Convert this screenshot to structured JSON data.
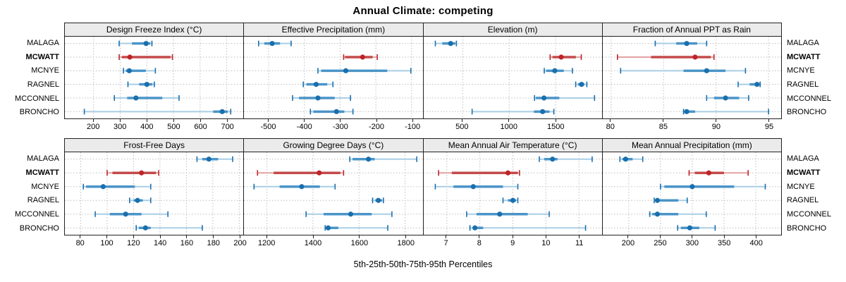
{
  "title": "Annual Climate: competing",
  "caption": "5th-25th-50th-75th-95th Percentiles",
  "colors": {
    "blue_full": "#1A6FAD",
    "blue_mid": "#4A94C8",
    "blue_light": "#A8CEE5",
    "red_full": "#BE2428",
    "red_mid": "#C44A4A",
    "red_light": "#E2A2A2",
    "grid": "#BDBDBD",
    "strip_bg": "#EBEBEB",
    "panel_border": "#222222"
  },
  "chart_data": {
    "type": "dotplot",
    "subtype": "percentile-segments",
    "percentile_labels": [
      "5th",
      "25th",
      "50th",
      "75th",
      "95th"
    ],
    "stations": [
      "MALAGA",
      "MCWATT",
      "MCNYE",
      "RAGNEL",
      "MCCONNEL",
      "BRONCHO"
    ],
    "emphasized_station": "MCWATT",
    "layout": {
      "rows": 2,
      "cols": 4,
      "legend": "none",
      "grid": "dotted"
    },
    "panels": [
      {
        "title": "Design Freeze Index (°C)",
        "xlim": [
          92,
          762
        ],
        "ticks": [
          200,
          300,
          400,
          500,
          600,
          700
        ],
        "values": {
          "MALAGA": [
            296,
            344,
            397,
            413,
            419
          ],
          "MCWATT": [
            296,
            306,
            336,
            489,
            496
          ],
          "MCNYE": [
            312,
            321,
            334,
            396,
            432
          ],
          "RAGNEL": [
            329,
            371,
            400,
            421,
            428
          ],
          "MCCONNEL": [
            278,
            326,
            359,
            458,
            521
          ],
          "BRONCHO": [
            165,
            649,
            683,
            704,
            715
          ]
        }
      },
      {
        "title": "Effective Precipitation (mm)",
        "xlim": [
          -569,
          -70
        ],
        "ticks": [
          -500,
          -400,
          -300,
          -200,
          -100
        ],
        "values": {
          "MALAGA": [
            -528,
            -512,
            -490,
            -468,
            -437
          ],
          "MCWATT": [
            -290,
            -286,
            -237,
            -209,
            -196
          ],
          "MCNYE": [
            -362,
            -353,
            -284,
            -168,
            -102
          ],
          "RAGNEL": [
            -403,
            -394,
            -367,
            -336,
            -320
          ],
          "MCCONNEL": [
            -433,
            -415,
            -362,
            -315,
            -271
          ],
          "BRONCHO": [
            -383,
            -375,
            -310,
            -288,
            -264
          ]
        }
      },
      {
        "title": "Elevation (m)",
        "xlim": [
          80,
          2000
        ],
        "ticks": [
          500,
          1000,
          1500
        ],
        "values": {
          "MALAGA": [
            205,
            280,
            370,
            420,
            432
          ],
          "MCWATT": [
            1441,
            1466,
            1560,
            1718,
            1776
          ],
          "MCNYE": [
            1378,
            1398,
            1491,
            1588,
            1681
          ],
          "RAGNEL": [
            1716,
            1741,
            1779,
            1809,
            1836
          ],
          "MCCONNEL": [
            1273,
            1287,
            1375,
            1540,
            1919
          ],
          "BRONCHO": [
            601,
            1266,
            1360,
            1434,
            1481
          ]
        }
      },
      {
        "title": "Fraction of Annual PPT as Rain",
        "xlim": [
          79.2,
          96.2
        ],
        "ticks": [
          80,
          85,
          90,
          95
        ],
        "values": {
          "MALAGA": [
            84.2,
            86.2,
            87.2,
            88.2,
            89.1
          ],
          "MCWATT": [
            80.6,
            83.8,
            88.0,
            89.5,
            89.8
          ],
          "MCNYE": [
            80.9,
            86.9,
            89.1,
            90.9,
            92.8
          ],
          "RAGNEL": [
            92.1,
            93.2,
            93.9,
            94.1,
            94.2
          ],
          "MCCONNEL": [
            89.1,
            89.8,
            90.9,
            92.2,
            93.1
          ],
          "BRONCHO": [
            86.9,
            87.0,
            87.2,
            88.0,
            95.0
          ]
        }
      },
      {
        "title": "Frost-Free Days",
        "xlim": [
          68,
          203
        ],
        "ticks": [
          80,
          100,
          120,
          140,
          160,
          180,
          200
        ],
        "values": {
          "MALAGA": [
            168,
            172,
            177,
            184,
            195
          ],
          "MCWATT": [
            100,
            104,
            126,
            137,
            139
          ],
          "MCNYE": [
            82,
            84,
            97,
            121,
            133
          ],
          "RAGNEL": [
            117,
            120,
            123,
            127,
            133
          ],
          "MCCONNEL": [
            91,
            102,
            114,
            126,
            146
          ],
          "BRONCHO": [
            122,
            124,
            129,
            133,
            172
          ]
        }
      },
      {
        "title": "Growing Degree Days (°C)",
        "xlim": [
          1100,
          1875
        ],
        "ticks": [
          1200,
          1400,
          1600,
          1800
        ],
        "values": {
          "MALAGA": [
            1560,
            1572,
            1641,
            1668,
            1851
          ],
          "MCWATT": [
            1159,
            1229,
            1427,
            1519,
            1533
          ],
          "MCNYE": [
            1144,
            1255,
            1351,
            1430,
            1496
          ],
          "RAGNEL": [
            1659,
            1671,
            1684,
            1700,
            1706
          ],
          "MCCONNEL": [
            1370,
            1446,
            1564,
            1655,
            1743
          ],
          "BRONCHO": [
            1453,
            1459,
            1466,
            1510,
            1725
          ]
        }
      },
      {
        "title": "Mean Annual Air Temperature (°C)",
        "xlim": [
          6.3,
          11.7
        ],
        "ticks": [
          7,
          8,
          9,
          10,
          11
        ],
        "values": {
          "MALAGA": [
            9.8,
            9.95,
            10.2,
            10.35,
            11.4
          ],
          "MCWATT": [
            6.75,
            7.15,
            8.85,
            9.15,
            9.2
          ],
          "MCNYE": [
            6.65,
            7.2,
            7.8,
            8.7,
            9.15
          ],
          "RAGNEL": [
            8.7,
            8.85,
            9.0,
            9.1,
            9.15
          ],
          "MCCONNEL": [
            7.6,
            7.9,
            8.6,
            9.45,
            10.1
          ],
          "BRONCHO": [
            7.7,
            7.8,
            7.85,
            8.1,
            11.2
          ]
        }
      },
      {
        "title": "Mean Annual Precipitation (mm)",
        "xlim": [
          159,
          440
        ],
        "ticks": [
          200,
          250,
          300,
          350,
          400
        ],
        "values": {
          "MALAGA": [
            186,
            190,
            195,
            206,
            222
          ],
          "MCWATT": [
            295,
            304,
            326,
            350,
            388
          ],
          "MCNYE": [
            250,
            256,
            300,
            366,
            415
          ],
          "RAGNEL": [
            240,
            242,
            245,
            278,
            292
          ],
          "MCCONNEL": [
            233,
            237,
            245,
            278,
            322
          ],
          "BRONCHO": [
            277,
            282,
            296,
            311,
            336
          ]
        }
      }
    ]
  }
}
